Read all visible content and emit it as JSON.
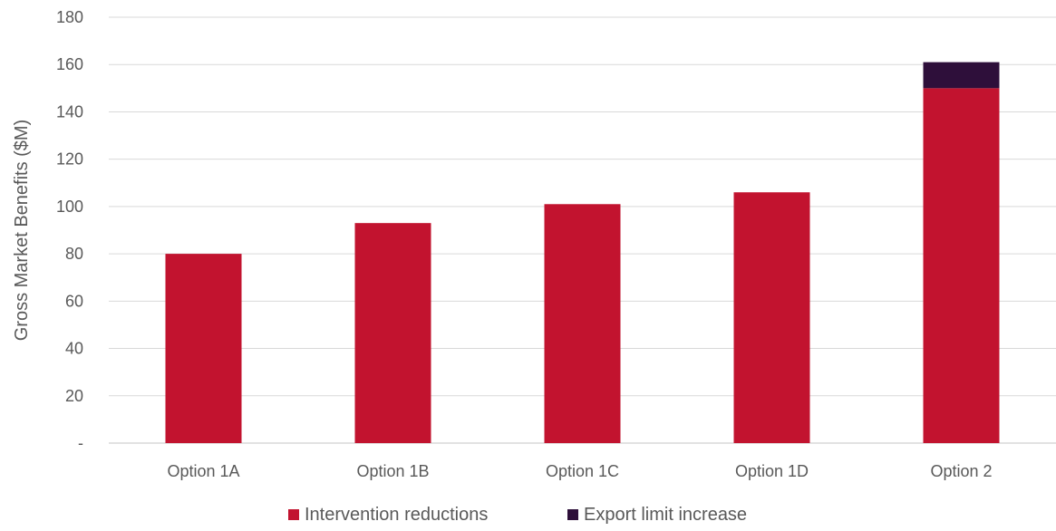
{
  "chart_data": {
    "type": "bar",
    "stacked": true,
    "categories": [
      "Option 1A",
      "Option 1B",
      "Option 1C",
      "Option 1D",
      "Option 2"
    ],
    "series": [
      {
        "name": "Intervention reductions",
        "values": [
          80,
          93,
          101,
          106,
          150
        ],
        "color": "#c2132f"
      },
      {
        "name": "Export limit increase",
        "values": [
          0,
          0,
          0,
          0,
          11
        ],
        "color": "#2e0f3a"
      }
    ],
    "title": "",
    "xlabel": "",
    "ylabel": "Gross Market Benefits ($M)",
    "ylim": [
      0,
      180
    ],
    "yticks": [
      0,
      20,
      40,
      60,
      80,
      100,
      120,
      140,
      160,
      180
    ],
    "ytick_labels": [
      "-",
      "20",
      "40",
      "60",
      "80",
      "100",
      "120",
      "140",
      "160",
      "180"
    ],
    "grid": true,
    "legend_position": "bottom"
  }
}
